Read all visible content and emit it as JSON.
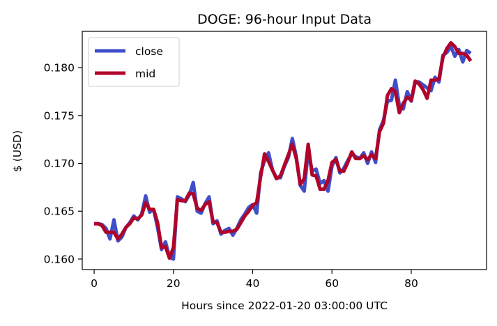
{
  "chart_data": {
    "type": "line",
    "title": "DOGE: 96-hour Input Data",
    "xlabel": "Hours since 2022-01-20 03:00:00 UTC",
    "ylabel": "$ (USD)",
    "xlim": [
      -3.0,
      99.0
    ],
    "ylim": [
      0.1589,
      0.1838
    ],
    "xticks": [
      0,
      20,
      40,
      60,
      80
    ],
    "yticks": [
      0.16,
      0.165,
      0.17,
      0.175,
      0.18
    ],
    "ytick_labels": [
      "0.160",
      "0.165",
      "0.170",
      "0.175",
      "0.180"
    ],
    "grid": false,
    "legend": {
      "location": "upper-left"
    },
    "series": [
      {
        "name": "close",
        "color": "#3f4fc9",
        "values": [
          0.1637,
          0.1637,
          0.1636,
          0.1632,
          0.1621,
          0.1641,
          0.1619,
          0.1623,
          0.1633,
          0.1638,
          0.1645,
          0.1641,
          0.1647,
          0.1666,
          0.1649,
          0.1652,
          0.1633,
          0.161,
          0.1618,
          0.1602,
          0.16,
          0.1665,
          0.1663,
          0.166,
          0.1667,
          0.168,
          0.165,
          0.1648,
          0.1658,
          0.1665,
          0.1637,
          0.164,
          0.1626,
          0.163,
          0.1632,
          0.1625,
          0.1632,
          0.1641,
          0.1647,
          0.1654,
          0.1657,
          0.1648,
          0.169,
          0.1703,
          0.1711,
          0.1693,
          0.1685,
          0.1685,
          0.1697,
          0.1706,
          0.1726,
          0.1707,
          0.1677,
          0.1671,
          0.1713,
          0.1692,
          0.1694,
          0.1679,
          0.1682,
          0.1671,
          0.1697,
          0.1706,
          0.169,
          0.1695,
          0.1703,
          0.171,
          0.1707,
          0.1705,
          0.1711,
          0.17,
          0.1712,
          0.1701,
          0.1735,
          0.1745,
          0.1765,
          0.1766,
          0.1787,
          0.176,
          0.1757,
          0.1775,
          0.1765,
          0.1785,
          0.1785,
          0.1782,
          0.1779,
          0.1776,
          0.179,
          0.1785,
          0.1813,
          0.1816,
          0.1822,
          0.1812,
          0.1819,
          0.1806,
          0.1818,
          0.1815
        ]
      },
      {
        "name": "mid",
        "color": "#b0042a",
        "values": [
          0.1637,
          0.1637,
          0.1635,
          0.1628,
          0.1628,
          0.1628,
          0.1621,
          0.1626,
          0.1633,
          0.1637,
          0.1643,
          0.1642,
          0.1646,
          0.1659,
          0.1652,
          0.1652,
          0.1638,
          0.1612,
          0.1613,
          0.1601,
          0.1612,
          0.1662,
          0.1661,
          0.1661,
          0.1669,
          0.1668,
          0.1653,
          0.1651,
          0.1657,
          0.166,
          0.1639,
          0.1638,
          0.1628,
          0.1628,
          0.1629,
          0.1629,
          0.1631,
          0.1638,
          0.1645,
          0.165,
          0.1656,
          0.1659,
          0.1686,
          0.171,
          0.1702,
          0.1693,
          0.1684,
          0.1687,
          0.1698,
          0.1709,
          0.172,
          0.1705,
          0.1678,
          0.1684,
          0.172,
          0.1688,
          0.1687,
          0.1673,
          0.1673,
          0.1682,
          0.1701,
          0.1704,
          0.1692,
          0.1692,
          0.1701,
          0.1712,
          0.1705,
          0.1705,
          0.1708,
          0.1704,
          0.1709,
          0.1705,
          0.1733,
          0.1742,
          0.1771,
          0.1778,
          0.1775,
          0.1753,
          0.1763,
          0.1769,
          0.1766,
          0.1786,
          0.1783,
          0.1777,
          0.1768,
          0.1787,
          0.1787,
          0.1788,
          0.1811,
          0.182,
          0.1826,
          0.1822,
          0.1815,
          0.1815,
          0.1813,
          0.1807
        ]
      }
    ]
  }
}
